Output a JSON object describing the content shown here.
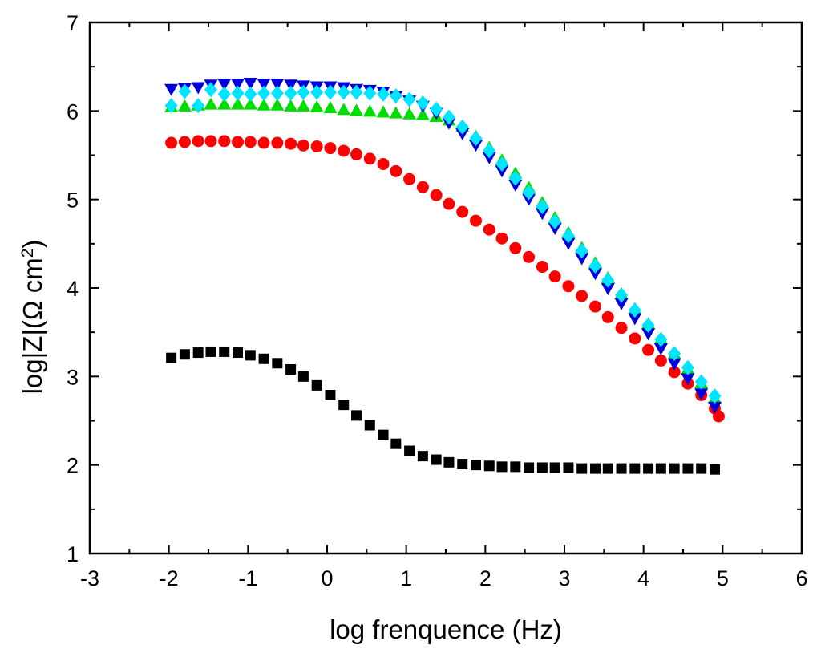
{
  "chart_data": {
    "type": "scatter",
    "xlabel": "log frenquence (Hz)",
    "ylabel": "log|Z|(Ω cm²)",
    "ylabel_parts": {
      "main": "log|Z|(Ω cm",
      "sup": "2",
      "close": ")"
    },
    "xlim": [
      -3,
      6
    ],
    "ylim": [
      1,
      7
    ],
    "xticks": [
      -3,
      -2,
      -1,
      0,
      1,
      2,
      3,
      4,
      5,
      6
    ],
    "yticks": [
      1,
      2,
      3,
      4,
      5,
      6,
      7
    ],
    "grid": false,
    "series": [
      {
        "marker": "square",
        "color": "#000000",
        "points": [
          [
            -1.97,
            3.21
          ],
          [
            -1.8,
            3.25
          ],
          [
            -1.63,
            3.27
          ],
          [
            -1.47,
            3.28
          ],
          [
            -1.3,
            3.28
          ],
          [
            -1.13,
            3.27
          ],
          [
            -0.97,
            3.24
          ],
          [
            -0.8,
            3.2
          ],
          [
            -0.63,
            3.15
          ],
          [
            -0.46,
            3.08
          ],
          [
            -0.3,
            3.0
          ],
          [
            -0.13,
            2.9
          ],
          [
            0.04,
            2.79
          ],
          [
            0.21,
            2.68
          ],
          [
            0.37,
            2.56
          ],
          [
            0.54,
            2.45
          ],
          [
            0.71,
            2.34
          ],
          [
            0.87,
            2.24
          ],
          [
            1.04,
            2.16
          ],
          [
            1.21,
            2.1
          ],
          [
            1.38,
            2.06
          ],
          [
            1.54,
            2.03
          ],
          [
            1.71,
            2.01
          ],
          [
            1.88,
            2.0
          ],
          [
            2.05,
            1.99
          ],
          [
            2.21,
            1.98
          ],
          [
            2.38,
            1.98
          ],
          [
            2.55,
            1.97
          ],
          [
            2.72,
            1.97
          ],
          [
            2.88,
            1.97
          ],
          [
            3.05,
            1.97
          ],
          [
            3.22,
            1.96
          ],
          [
            3.39,
            1.96
          ],
          [
            3.55,
            1.96
          ],
          [
            3.72,
            1.96
          ],
          [
            3.89,
            1.96
          ],
          [
            4.06,
            1.96
          ],
          [
            4.22,
            1.96
          ],
          [
            4.39,
            1.96
          ],
          [
            4.56,
            1.96
          ],
          [
            4.73,
            1.96
          ],
          [
            4.9,
            1.95
          ]
        ]
      },
      {
        "marker": "circle",
        "color": "#ff0000",
        "points": [
          [
            -1.97,
            5.64
          ],
          [
            -1.8,
            5.65
          ],
          [
            -1.63,
            5.66
          ],
          [
            -1.47,
            5.66
          ],
          [
            -1.3,
            5.66
          ],
          [
            -1.13,
            5.65
          ],
          [
            -0.97,
            5.65
          ],
          [
            -0.8,
            5.64
          ],
          [
            -0.63,
            5.64
          ],
          [
            -0.46,
            5.63
          ],
          [
            -0.3,
            5.61
          ],
          [
            -0.13,
            5.6
          ],
          [
            0.04,
            5.58
          ],
          [
            0.21,
            5.55
          ],
          [
            0.37,
            5.51
          ],
          [
            0.54,
            5.46
          ],
          [
            0.71,
            5.4
          ],
          [
            0.87,
            5.32
          ],
          [
            1.04,
            5.23
          ],
          [
            1.21,
            5.14
          ],
          [
            1.38,
            5.05
          ],
          [
            1.54,
            4.95
          ],
          [
            1.71,
            4.86
          ],
          [
            1.88,
            4.76
          ],
          [
            2.05,
            4.66
          ],
          [
            2.21,
            4.56
          ],
          [
            2.38,
            4.45
          ],
          [
            2.55,
            4.35
          ],
          [
            2.72,
            4.24
          ],
          [
            2.88,
            4.13
          ],
          [
            3.05,
            4.02
          ],
          [
            3.22,
            3.91
          ],
          [
            3.39,
            3.79
          ],
          [
            3.55,
            3.67
          ],
          [
            3.72,
            3.55
          ],
          [
            3.89,
            3.43
          ],
          [
            4.06,
            3.3
          ],
          [
            4.22,
            3.18
          ],
          [
            4.39,
            3.05
          ],
          [
            4.56,
            2.92
          ],
          [
            4.73,
            2.79
          ],
          [
            4.9,
            2.64
          ],
          [
            4.95,
            2.55
          ]
        ]
      },
      {
        "marker": "triangle-up",
        "color": "#00dd00",
        "points": [
          [
            -1.97,
            6.04
          ],
          [
            -1.8,
            6.05
          ],
          [
            -1.63,
            6.06
          ],
          [
            -1.47,
            6.07
          ],
          [
            -1.3,
            6.07
          ],
          [
            -1.13,
            6.07
          ],
          [
            -0.97,
            6.07
          ],
          [
            -0.8,
            6.06
          ],
          [
            -0.63,
            6.06
          ],
          [
            -0.46,
            6.05
          ],
          [
            -0.3,
            6.05
          ],
          [
            -0.13,
            6.04
          ],
          [
            0.04,
            6.03
          ],
          [
            0.21,
            6.01
          ],
          [
            0.37,
            6.0
          ],
          [
            0.54,
            5.99
          ],
          [
            0.71,
            5.98
          ],
          [
            0.87,
            5.97
          ],
          [
            1.04,
            5.96
          ],
          [
            1.21,
            5.95
          ],
          [
            1.38,
            5.93
          ],
          [
            1.54,
            5.89
          ],
          [
            1.71,
            5.82
          ],
          [
            1.88,
            5.71
          ],
          [
            2.05,
            5.58
          ],
          [
            2.21,
            5.44
          ],
          [
            2.38,
            5.29
          ],
          [
            2.55,
            5.13
          ],
          [
            2.72,
            4.96
          ],
          [
            2.88,
            4.79
          ],
          [
            3.05,
            4.62
          ],
          [
            3.22,
            4.45
          ],
          [
            3.39,
            4.28
          ],
          [
            3.55,
            4.11
          ],
          [
            3.72,
            3.93
          ],
          [
            3.89,
            3.76
          ],
          [
            4.06,
            3.59
          ],
          [
            4.22,
            3.42
          ],
          [
            4.39,
            3.25
          ],
          [
            4.56,
            3.08
          ],
          [
            4.73,
            2.92
          ],
          [
            4.9,
            2.75
          ]
        ]
      },
      {
        "marker": "triangle-down",
        "color": "#0000dd",
        "points": [
          [
            -1.97,
            6.25
          ],
          [
            -1.8,
            6.26
          ],
          [
            -1.63,
            6.27
          ],
          [
            -1.47,
            6.3
          ],
          [
            -1.3,
            6.31
          ],
          [
            -1.13,
            6.31
          ],
          [
            -0.97,
            6.32
          ],
          [
            -0.8,
            6.31
          ],
          [
            -0.63,
            6.31
          ],
          [
            -0.46,
            6.3
          ],
          [
            -0.3,
            6.29
          ],
          [
            -0.13,
            6.28
          ],
          [
            0.04,
            6.28
          ],
          [
            0.21,
            6.27
          ],
          [
            0.37,
            6.25
          ],
          [
            0.54,
            6.24
          ],
          [
            0.71,
            6.22
          ],
          [
            0.87,
            6.17
          ],
          [
            1.04,
            6.12
          ],
          [
            1.21,
            6.06
          ],
          [
            1.38,
            5.98
          ],
          [
            1.54,
            5.87
          ],
          [
            1.71,
            5.75
          ],
          [
            1.88,
            5.62
          ],
          [
            2.05,
            5.48
          ],
          [
            2.21,
            5.33
          ],
          [
            2.38,
            5.17
          ],
          [
            2.55,
            5.01
          ],
          [
            2.72,
            4.85
          ],
          [
            2.88,
            4.68
          ],
          [
            3.05,
            4.51
          ],
          [
            3.22,
            4.34
          ],
          [
            3.39,
            4.17
          ],
          [
            3.55,
            4.0
          ],
          [
            3.72,
            3.83
          ],
          [
            3.89,
            3.66
          ],
          [
            4.06,
            3.49
          ],
          [
            4.22,
            3.32
          ],
          [
            4.39,
            3.15
          ],
          [
            4.56,
            2.98
          ],
          [
            4.73,
            2.81
          ],
          [
            4.9,
            2.66
          ]
        ]
      },
      {
        "marker": "diamond",
        "color": "#00e5ff",
        "points": [
          [
            -1.97,
            6.06
          ],
          [
            -1.8,
            6.22
          ],
          [
            -1.63,
            6.06
          ],
          [
            -1.47,
            6.24
          ],
          [
            -1.3,
            6.19
          ],
          [
            -1.13,
            6.2
          ],
          [
            -0.97,
            6.19
          ],
          [
            -0.8,
            6.2
          ],
          [
            -0.63,
            6.2
          ],
          [
            -0.46,
            6.2
          ],
          [
            -0.3,
            6.21
          ],
          [
            -0.13,
            6.21
          ],
          [
            0.04,
            6.21
          ],
          [
            0.21,
            6.21
          ],
          [
            0.37,
            6.21
          ],
          [
            0.54,
            6.2
          ],
          [
            0.71,
            6.19
          ],
          [
            0.87,
            6.17
          ],
          [
            1.04,
            6.13
          ],
          [
            1.21,
            6.09
          ],
          [
            1.38,
            6.02
          ],
          [
            1.54,
            5.93
          ],
          [
            1.71,
            5.82
          ],
          [
            1.88,
            5.69
          ],
          [
            2.05,
            5.55
          ],
          [
            2.21,
            5.4
          ],
          [
            2.38,
            5.24
          ],
          [
            2.55,
            5.08
          ],
          [
            2.72,
            4.92
          ],
          [
            2.88,
            4.75
          ],
          [
            3.05,
            4.59
          ],
          [
            3.22,
            4.42
          ],
          [
            3.39,
            4.25
          ],
          [
            3.55,
            4.09
          ],
          [
            3.72,
            3.92
          ],
          [
            3.89,
            3.75
          ],
          [
            4.06,
            3.58
          ],
          [
            4.22,
            3.42
          ],
          [
            4.39,
            3.26
          ],
          [
            4.56,
            3.1
          ],
          [
            4.73,
            2.94
          ],
          [
            4.9,
            2.78
          ]
        ]
      }
    ]
  }
}
